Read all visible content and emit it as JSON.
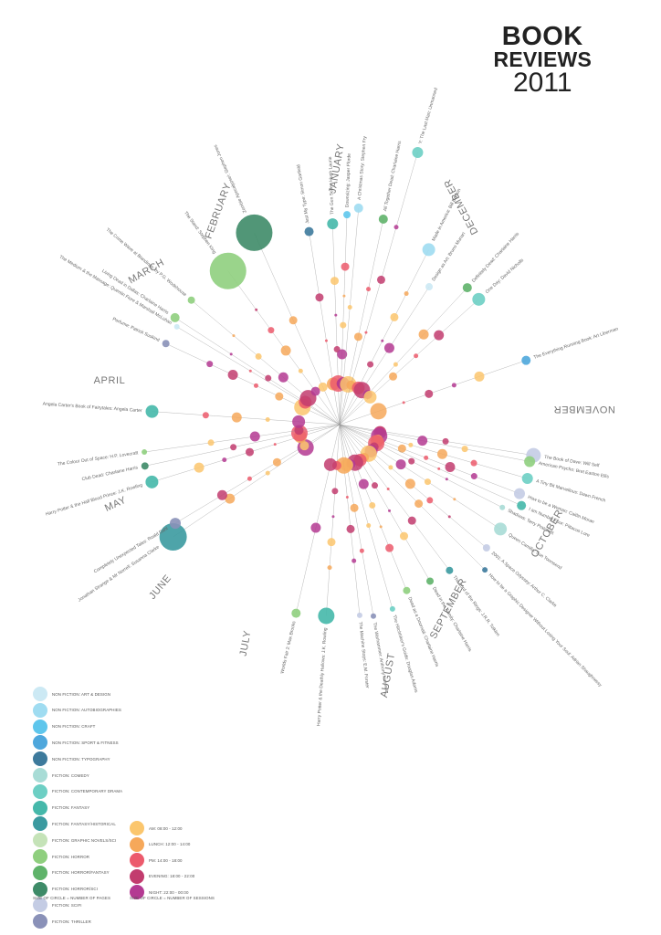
{
  "title": {
    "line1": "BOOK",
    "line2": "REVIEWS",
    "line3": "2011"
  },
  "months": [
    "JANUARY",
    "FEBRUARY",
    "MARCH",
    "APRIL",
    "MAY",
    "JUNE",
    "JULY",
    "AUGUST",
    "SEPTEMBER",
    "OCTOBER",
    "NOVEMBER",
    "DECEMBER"
  ],
  "books": [
    {
      "label": "Zombie Apocalypse!: Stephen Jones",
      "genre": "fiction-horror-sci"
    },
    {
      "label": "Just My Type: Simon Garfield",
      "genre": "nonfiction-typography"
    },
    {
      "label": "The Gun Seller: Hugh Laurie",
      "genre": "fiction-fantasy"
    },
    {
      "label": "Downsizing: Jasper Fforde",
      "genre": "nonfiction-craft"
    },
    {
      "label": "A Christmas Story: Stephen Fry",
      "genre": "nonfiction-autobiographies"
    },
    {
      "label": "All Together Dead: Charlaine Harris",
      "genre": "fiction-horror-fantasy"
    },
    {
      "label": "Y: The Last Man: Unmanned",
      "genre": "fiction-contemporary-drama"
    },
    {
      "label": "Made in America: Bill Bryson",
      "genre": "nonfiction-autobiographies"
    },
    {
      "label": "Design as Art: Bruno Munari",
      "genre": "nonfiction-art-design"
    },
    {
      "label": "Definitely Dead: Charlaine Harris",
      "genre": "fiction-horror-fantasy"
    },
    {
      "label": "One Day: David Nicholls",
      "genre": "fiction-contemporary-drama"
    },
    {
      "label": "The Everything Running Book: Art Liberman",
      "genre": "nonfiction-sport-fitness"
    },
    {
      "label": "The Book of Dave: Will Self",
      "genre": "fiction-scifi"
    },
    {
      "label": "American Psycho: Bret Easton Ellis",
      "genre": "fiction-horror"
    },
    {
      "label": "A Tiny Bit Marvellous: Dawn French",
      "genre": "fiction-contemporary-drama"
    },
    {
      "label": "How to be a Woman: Caitlin Moran",
      "genre": "fiction-scifi"
    },
    {
      "label": "I am Number Four: Pittacus Lore",
      "genre": "fiction-fantasy"
    },
    {
      "label": "Shadows: Terry Pratchett",
      "genre": "fiction-comedy"
    },
    {
      "label": "Queen Camilla: Sue Townsend",
      "genre": "fiction-comedy"
    },
    {
      "label": "2001: A Space Odyssey: Arthur C. Clarke",
      "genre": "fiction-scifi"
    },
    {
      "label": "How to be a Graphic Designer Without Losing Your Soul: Adrian Shaughnessy",
      "genre": "nonfiction-typography"
    },
    {
      "label": "The Lord of the Rings: J.R.R. Tolkien",
      "genre": "fiction-fantasy-historical"
    },
    {
      "label": "Dead in the Family: Charlaine Harris",
      "genre": "fiction-horror-fantasy"
    },
    {
      "label": "Dead as a Doornail: Charlaine Harris",
      "genre": "fiction-horror"
    },
    {
      "label": "The Hitchhiker's Guide: Douglas Adams",
      "genre": "fiction-contemporary-drama"
    },
    {
      "label": "The Warhammer: Anthony Horowitz",
      "genre": "fiction-thriller"
    },
    {
      "label": "The Machine Stops: E.M. Forster",
      "genre": "fiction-scifi"
    },
    {
      "label": "Harry Potter & the Deathly Hallows: J.K. Rowling",
      "genre": "fiction-fantasy"
    },
    {
      "label": "Worlds Fair 2: Max Brooks",
      "genre": "fiction-horror"
    },
    {
      "label": "Jonathan Strange & Mr Norrell: Susanna Clarke",
      "genre": "fiction-fantasy-historical"
    },
    {
      "label": "Completely Unexpected Tales: Roald Dahl",
      "genre": "fiction-thriller"
    },
    {
      "label": "Harry Potter & the Half Blood Prince: J.K. Rowling",
      "genre": "fiction-fantasy"
    },
    {
      "label": "Club Dead: Charlaine Harris",
      "genre": "fiction-horror-sci"
    },
    {
      "label": "The Colour Out of Space: H.P. Lovecraft",
      "genre": "fiction-horror"
    },
    {
      "label": "Angela Carter's Book of Fairytales: Angela Carter",
      "genre": "fiction-fantasy"
    },
    {
      "label": "Perfume: Patrick Suskind",
      "genre": "fiction-thriller"
    },
    {
      "label": "The Medium & the Massage: Quentin Fiore & Marshall McLuhan",
      "genre": "nonfiction-art-design"
    },
    {
      "label": "Living Dead in Dallas: Charlaine Harris",
      "genre": "fiction-horror"
    },
    {
      "label": "The Crime Wave at Blandings: by P.G. Wodehouse",
      "genre": "fiction-horror"
    },
    {
      "label": "The Stand: Stephen King",
      "genre": "fiction-horror"
    }
  ],
  "legend": {
    "genres": [
      {
        "label": "NON FICTION: ART & DESIGN",
        "color": "#cce9f4"
      },
      {
        "label": "NON FICTION: AUTOBIOGRAPHIES",
        "color": "#9fdcf1"
      },
      {
        "label": "NON FICTION: CRAFT",
        "color": "#5ec6ec"
      },
      {
        "label": "NON FICTION: SPORT & FITNESS",
        "color": "#4ea7dc"
      },
      {
        "label": "NON FICTION: TYPOGRAPHY",
        "color": "#3d7a9c"
      },
      {
        "label": "FICTION: COMEDY",
        "color": "#a8dcd6"
      },
      {
        "label": "FICTION: CONTEMPORARY DRAMA",
        "color": "#6dcfc4"
      },
      {
        "label": "FICTION: FANTASY",
        "color": "#45b8aa"
      },
      {
        "label": "FICTION: FANTASY/HISTORICAL",
        "color": "#3b9aa0"
      },
      {
        "label": "FICTION: GRAPHIC NOVELS/SCI",
        "color": "#c5e3b8"
      },
      {
        "label": "FICTION: HORROR",
        "color": "#8fcf7e"
      },
      {
        "label": "FICTION: HORROR/FANTASY",
        "color": "#5fb36a"
      },
      {
        "label": "FICTION: HORROR/SCI",
        "color": "#3e8b68"
      },
      {
        "label": "FICTION: SCIFI",
        "color": "#c4cce4"
      },
      {
        "label": "FICTION: THRILLER",
        "color": "#8a91b8"
      }
    ],
    "times": [
      {
        "label": "AM: 08:00 - 12:00",
        "color": "#fbc66d"
      },
      {
        "label": "LUNCH: 12:00 - 14:00",
        "color": "#f6a85a"
      },
      {
        "label": "PM: 14:00 - 18:00",
        "color": "#ec5a6c"
      },
      {
        "label": "EVENING: 18:00 - 22:00",
        "color": "#c23c6e"
      },
      {
        "label": "NIGHT: 22:00 - 00:00",
        "color": "#b43a92"
      }
    ],
    "note_pages": "SIZE OF CIRCLE = NUMBER OF PAGES",
    "note_sessions": "SIZE OF CIRCLE = NUMBER OF SESSIONS"
  }
}
